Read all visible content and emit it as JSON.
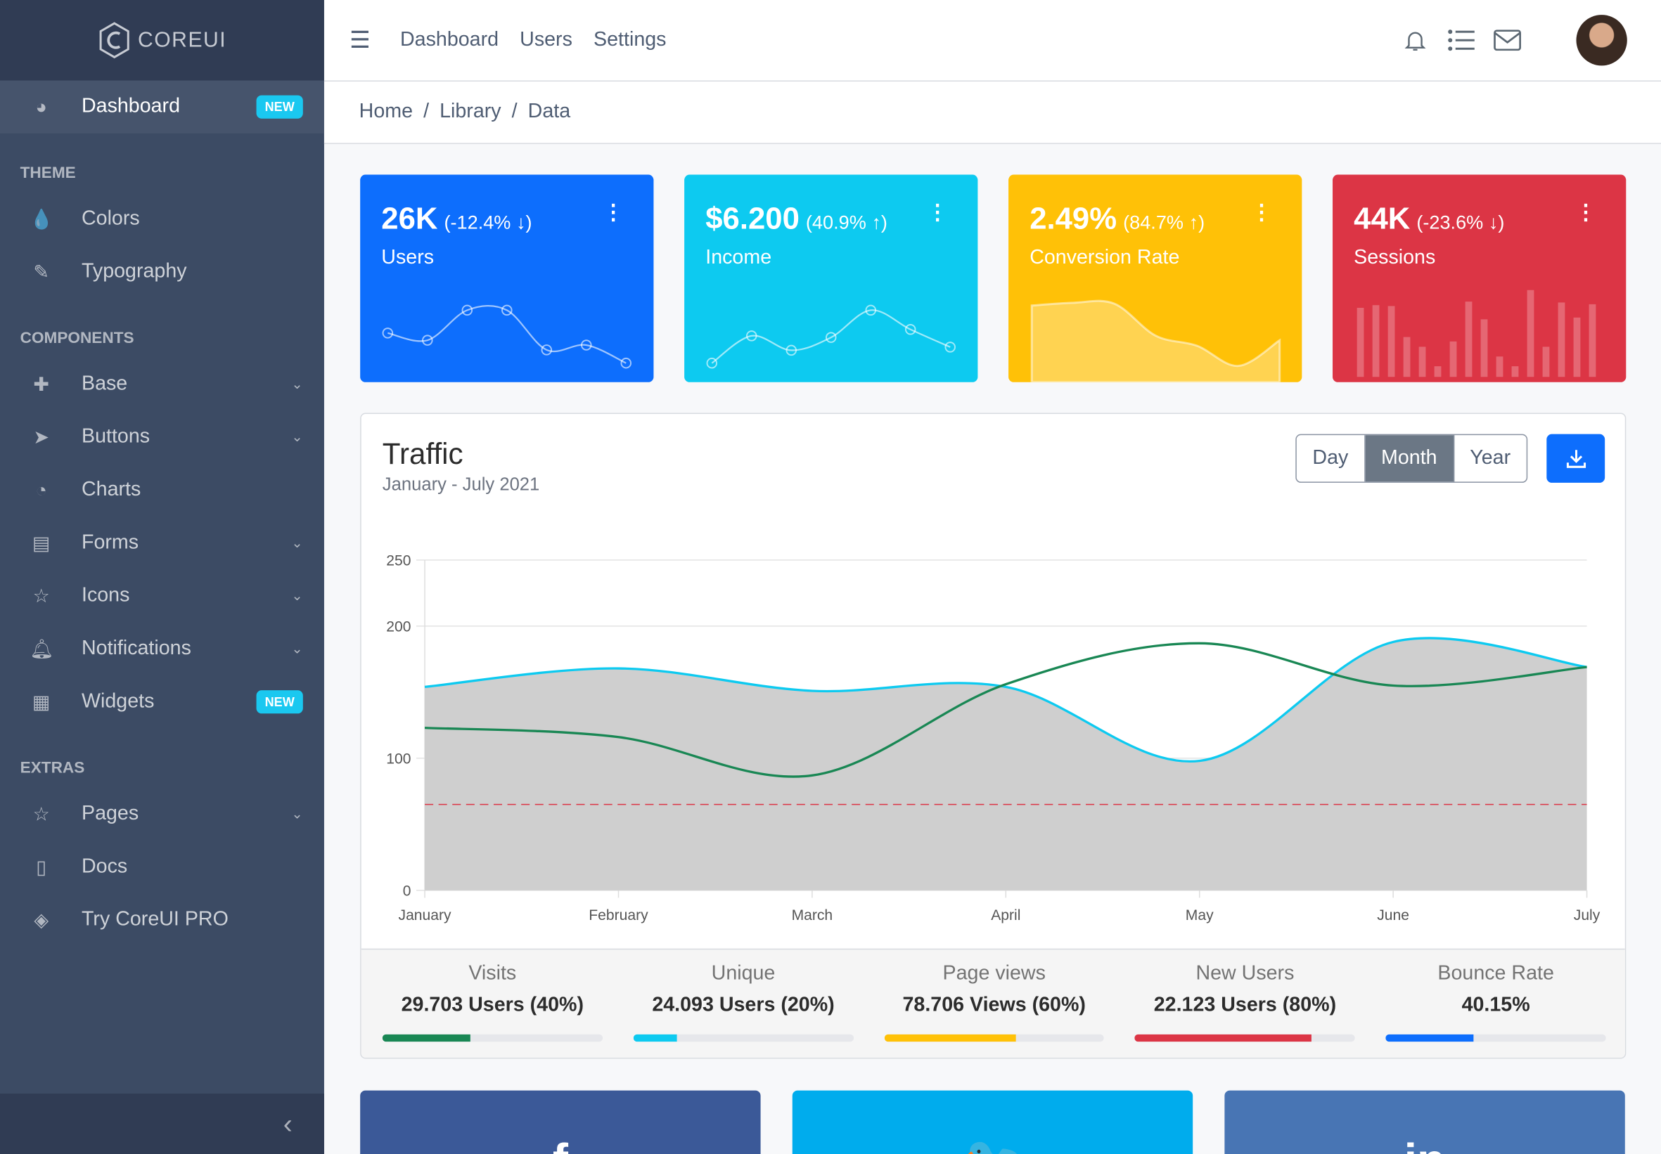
{
  "brand": {
    "name": "COREUI"
  },
  "sidebar": {
    "items": [
      {
        "label": "Dashboard",
        "icon": "speedometer-icon",
        "badge": "NEW",
        "active": true
      },
      {
        "section": "THEME"
      },
      {
        "label": "Colors",
        "icon": "drop-icon"
      },
      {
        "label": "Typography",
        "icon": "pencil-icon"
      },
      {
        "section": "COMPONENTS"
      },
      {
        "label": "Base",
        "icon": "puzzle-icon",
        "expandable": true
      },
      {
        "label": "Buttons",
        "icon": "cursor-icon",
        "expandable": true
      },
      {
        "label": "Charts",
        "icon": "chart-pie-icon"
      },
      {
        "label": "Forms",
        "icon": "notes-icon",
        "expandable": true
      },
      {
        "label": "Icons",
        "icon": "star-icon",
        "expandable": true
      },
      {
        "label": "Notifications",
        "icon": "bell-icon",
        "expandable": true
      },
      {
        "label": "Widgets",
        "icon": "calculator-icon",
        "badge": "NEW"
      },
      {
        "section": "EXTRAS"
      },
      {
        "label": "Pages",
        "icon": "star-icon",
        "expandable": true
      },
      {
        "label": "Docs",
        "icon": "description-icon"
      },
      {
        "label": "Try CoreUI PRO",
        "icon": "layers-icon"
      }
    ]
  },
  "header": {
    "nav": [
      "Dashboard",
      "Users",
      "Settings"
    ]
  },
  "breadcrumb": [
    "Home",
    "Library",
    "Data"
  ],
  "widgets": [
    {
      "value": "26K",
      "change": "(-12.4% ↓)",
      "label": "Users",
      "color": "#0d6efd",
      "type": "line-points",
      "data": [
        65,
        59,
        84,
        84,
        51,
        55,
        40
      ]
    },
    {
      "value": "$6.200",
      "change": "(40.9% ↑)",
      "label": "Income",
      "color": "#0dcaf0",
      "type": "line-points",
      "data": [
        1,
        18,
        9,
        17,
        34,
        22,
        11
      ]
    },
    {
      "value": "2.49%",
      "change": "(84.7% ↑)",
      "label": "Conversion Rate",
      "color": "#ffc107",
      "type": "area",
      "data": [
        78,
        81,
        80,
        45,
        34,
        12,
        40
      ]
    },
    {
      "value": "44K",
      "change": "(-23.6% ↓)",
      "label": "Sessions",
      "color": "#dc3545",
      "type": "bar",
      "data": [
        78,
        81,
        80,
        45,
        34,
        12,
        40,
        85,
        65,
        23,
        12,
        98,
        34,
        84,
        67,
        82
      ]
    }
  ],
  "traffic": {
    "title": "Traffic",
    "subtitle": "January - July 2021",
    "periods": [
      "Day",
      "Month",
      "Year"
    ],
    "selected_period": "Month",
    "stats": [
      {
        "label": "Visits",
        "value": "29.703 Users (40%)",
        "percent": 40,
        "color": "#198754"
      },
      {
        "label": "Unique",
        "value": "24.093 Users (20%)",
        "percent": 20,
        "color": "#0dcaf0"
      },
      {
        "label": "Page views",
        "value": "78.706 Views (60%)",
        "percent": 60,
        "color": "#ffc107"
      },
      {
        "label": "New Users",
        "value": "22.123 Users (80%)",
        "percent": 80,
        "color": "#dc3545"
      },
      {
        "label": "Bounce Rate",
        "value": "40.15%",
        "percent": 40,
        "color": "#0d6efd"
      }
    ]
  },
  "chart_data": {
    "type": "line",
    "categories": [
      "January",
      "February",
      "March",
      "April",
      "May",
      "June",
      "July"
    ],
    "ylim": [
      0,
      250
    ],
    "yticks": [
      0,
      100,
      200,
      250
    ],
    "grid": true,
    "series": [
      {
        "values": [
          154,
          168,
          151,
          154,
          98,
          188,
          169
        ],
        "color": "#0dcaf0",
        "fill": "#cfcfcf"
      },
      {
        "values": [
          123,
          116,
          87,
          156,
          187,
          155,
          169
        ],
        "color": "#198754"
      },
      {
        "values": [
          65,
          65,
          65,
          65,
          65,
          65,
          65
        ],
        "color": "#dc3545",
        "dashed": true
      }
    ]
  },
  "social": [
    {
      "icon": "facebook-icon",
      "glyph": "f",
      "color": "#3b5998"
    },
    {
      "icon": "twitter-icon",
      "glyph": "🐦",
      "color": "#00aced"
    },
    {
      "icon": "linkedin-icon",
      "glyph": "in",
      "color": "#4875b4"
    }
  ]
}
